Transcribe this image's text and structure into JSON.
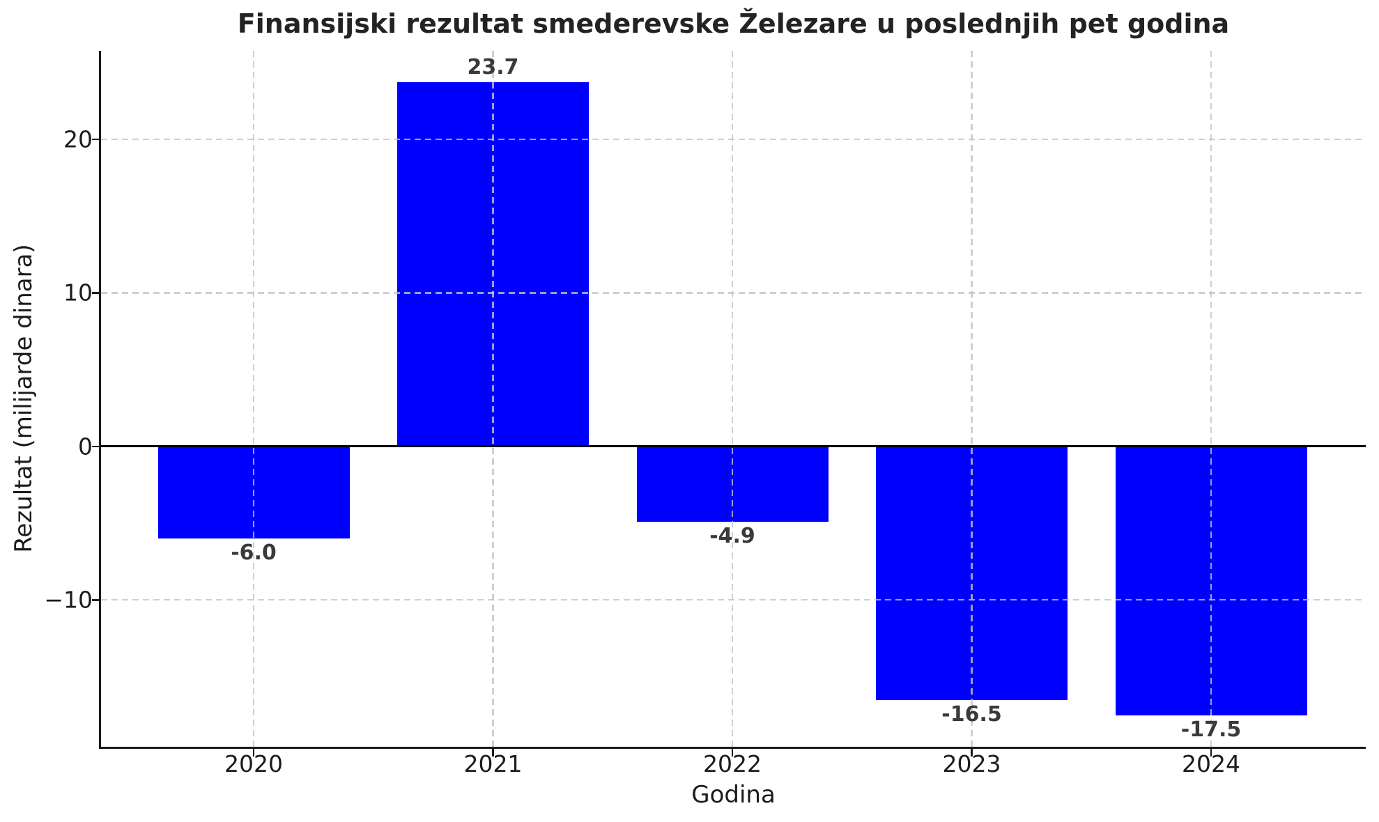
{
  "chart_data": {
    "type": "bar",
    "title": "Finansijski rezultat smederevske Železare u poslednjih pet godina",
    "xlabel": "Godina",
    "ylabel": "Rezultat (milijarde dinara)",
    "categories": [
      "2020",
      "2021",
      "2022",
      "2023",
      "2024"
    ],
    "values": [
      -6.0,
      23.7,
      -4.9,
      -16.5,
      -17.5
    ],
    "value_labels": [
      "-6.0",
      "23.7",
      "-4.9",
      "-16.5",
      "-17.5"
    ],
    "y_ticks": [
      {
        "value": 20,
        "label": "20"
      },
      {
        "value": 10,
        "label": "10"
      },
      {
        "value": 0,
        "label": "0"
      },
      {
        "value": -10,
        "label": "−10"
      }
    ],
    "ylim": [
      -19.56,
      25.76
    ],
    "grid": true,
    "legend": null,
    "bar_color": "#0000ff",
    "grid_color": "#c3c3c3",
    "zero_line_color": "#000000",
    "spine_color": "#1a1a1a",
    "title_color": "#232323",
    "tick_label_color": "#1b1b1b",
    "value_label_color": "#3a3a3a",
    "background_color": "#ffffff"
  }
}
